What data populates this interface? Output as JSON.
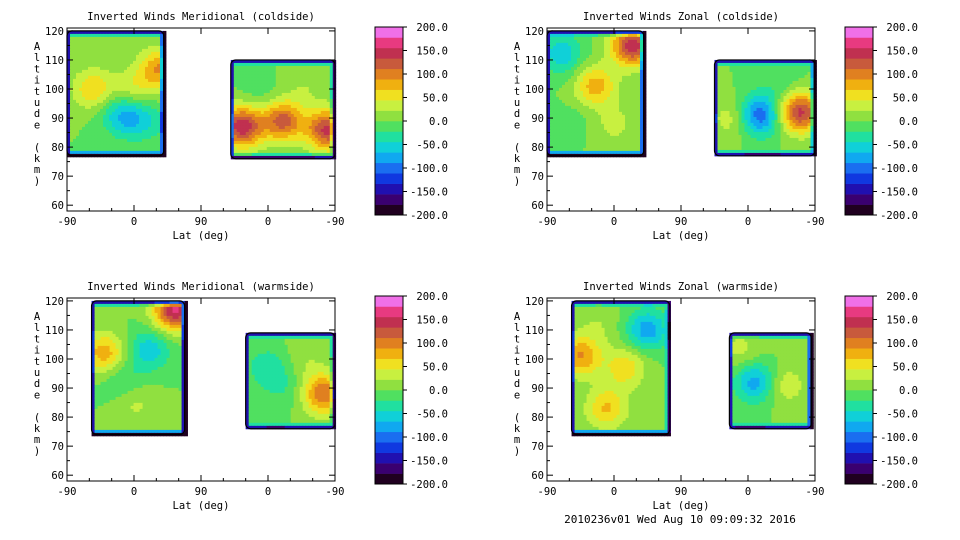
{
  "footer": "2010236v01 Wed Aug 10 09:09:32 2016",
  "chart_data": [
    {
      "type": "heatmap",
      "title": "Inverted Winds Meridional (coldside)",
      "xlabel": "Lat (deg)",
      "ylabel": "Altitude (km)",
      "xticks": [
        "-90",
        "0",
        "90",
        "0",
        "-90"
      ],
      "yticks": [
        "60",
        "70",
        "80",
        "90",
        "100",
        "110",
        "120"
      ],
      "ylim": [
        58,
        121
      ],
      "colorbar": {
        "ticks": [
          "200.0",
          "150.0",
          "100.0",
          "50.0",
          "0.0",
          "-50.0",
          "-100.0",
          "-150.0",
          "-200.0"
        ],
        "range": [
          -200,
          200
        ]
      },
      "regions": [
        {
          "lat": [
            -90,
            40
          ],
          "alt": [
            77,
            120
          ],
          "features": [
            {
              "lat": -55,
              "alt": 100,
              "value": 65
            },
            {
              "lat": 35,
              "alt": 107,
              "value": 90
            },
            {
              "lat": 0,
              "alt": 100,
              "value": 40
            },
            {
              "lat": -15,
              "alt": 91,
              "value": -70
            },
            {
              "lat": 15,
              "alt": 89,
              "value": -40
            }
          ]
        },
        {
          "lat": [
            130,
            270
          ],
          "alt": [
            76,
            110
          ],
          "features": [
            {
              "lat": 145,
              "alt": 87,
              "value": 150
            },
            {
              "lat": 200,
              "alt": 89,
              "value": 120
            },
            {
              "lat": 260,
              "alt": 86,
              "value": 140
            },
            {
              "lat": 170,
              "alt": 98,
              "value": -15
            },
            {
              "lat": 230,
              "alt": 101,
              "value": 20
            }
          ]
        }
      ]
    },
    {
      "type": "heatmap",
      "title": "Inverted Winds Zonal (coldside)",
      "xlabel": "Lat (deg)",
      "ylabel": "Altitude (km)",
      "xticks": [
        "-90",
        "0",
        "90",
        "0",
        "-90"
      ],
      "yticks": [
        "60",
        "70",
        "80",
        "90",
        "100",
        "110",
        "120"
      ],
      "ylim": [
        58,
        121
      ],
      "colorbar": {
        "ticks": [
          "200.0",
          "150.0",
          "100.0",
          "50.0",
          "0.0",
          "-50.0",
          "-100.0",
          "-150.0",
          "-200.0"
        ],
        "range": [
          -200,
          200
        ]
      },
      "regions": [
        {
          "lat": [
            -90,
            40
          ],
          "alt": [
            77,
            120
          ],
          "features": [
            {
              "lat": 25,
              "alt": 115,
              "value": 150
            },
            {
              "lat": -25,
              "alt": 101,
              "value": 80
            },
            {
              "lat": -70,
              "alt": 112,
              "value": -60
            },
            {
              "lat": 0,
              "alt": 88,
              "value": 30
            },
            {
              "lat": -50,
              "alt": 90,
              "value": -10
            }
          ]
        },
        {
          "lat": [
            135,
            270
          ],
          "alt": [
            77,
            110
          ],
          "features": [
            {
              "lat": 250,
              "alt": 92,
              "value": 140
            },
            {
              "lat": 195,
              "alt": 91,
              "value": -110
            },
            {
              "lat": 160,
              "alt": 90,
              "value": 40
            },
            {
              "lat": 225,
              "alt": 102,
              "value": -20
            }
          ]
        }
      ]
    },
    {
      "type": "heatmap",
      "title": "Inverted Winds Meridional (warmside)",
      "xlabel": "Lat (deg)",
      "ylabel": "Altitude (km)",
      "xticks": [
        "-90",
        "0",
        "90",
        "0",
        "-90"
      ],
      "yticks": [
        "60",
        "70",
        "80",
        "90",
        "100",
        "110",
        "120"
      ],
      "ylim": [
        58,
        121
      ],
      "colorbar": {
        "ticks": [
          "200.0",
          "150.0",
          "100.0",
          "50.0",
          "0.0",
          "-50.0",
          "-100.0",
          "-150.0",
          "-200.0"
        ],
        "range": [
          -200,
          200
        ]
      },
      "regions": [
        {
          "lat": [
            -57,
            68
          ],
          "alt": [
            74,
            120
          ],
          "features": [
            {
              "lat": 55,
              "alt": 117,
              "value": 160
            },
            {
              "lat": -40,
              "alt": 102,
              "value": 80
            },
            {
              "lat": 20,
              "alt": 103,
              "value": -60
            },
            {
              "lat": -15,
              "alt": 92,
              "value": -30
            },
            {
              "lat": 0,
              "alt": 85,
              "value": 30
            }
          ]
        },
        {
          "lat": [
            150,
            270
          ],
          "alt": [
            76,
            109
          ],
          "features": [
            {
              "lat": 180,
              "alt": 97,
              "value": -40
            },
            {
              "lat": 255,
              "alt": 88,
              "value": 110
            },
            {
              "lat": 230,
              "alt": 100,
              "value": 20
            },
            {
              "lat": 200,
              "alt": 90,
              "value": -20
            }
          ]
        }
      ]
    },
    {
      "type": "heatmap",
      "title": "Inverted Winds Zonal (warmside)",
      "xlabel": "Lat (deg)",
      "ylabel": "Altitude (km)",
      "xticks": [
        "-90",
        "0",
        "90",
        "0",
        "-90"
      ],
      "yticks": [
        "60",
        "70",
        "80",
        "90",
        "100",
        "110",
        "120"
      ],
      "ylim": [
        58,
        121
      ],
      "colorbar": {
        "ticks": [
          "200.0",
          "150.0",
          "100.0",
          "50.0",
          "0.0",
          "-50.0",
          "-100.0",
          "-150.0",
          "-200.0"
        ],
        "range": [
          -200,
          200
        ]
      },
      "regions": [
        {
          "lat": [
            -57,
            75
          ],
          "alt": [
            74,
            120
          ],
          "features": [
            {
              "lat": -45,
              "alt": 101,
              "value": 90
            },
            {
              "lat": 15,
              "alt": 97,
              "value": 60
            },
            {
              "lat": 45,
              "alt": 110,
              "value": -80
            },
            {
              "lat": -10,
              "alt": 83,
              "value": 70
            },
            {
              "lat": -20,
              "alt": 112,
              "value": 20
            }
          ]
        },
        {
          "lat": [
            155,
            265
          ],
          "alt": [
            76,
            109
          ],
          "features": [
            {
              "lat": 190,
              "alt": 92,
              "value": -80
            },
            {
              "lat": 230,
              "alt": 91,
              "value": 40
            },
            {
              "lat": 250,
              "alt": 100,
              "value": 0
            },
            {
              "lat": 170,
              "alt": 103,
              "value": 30
            }
          ]
        }
      ]
    }
  ]
}
